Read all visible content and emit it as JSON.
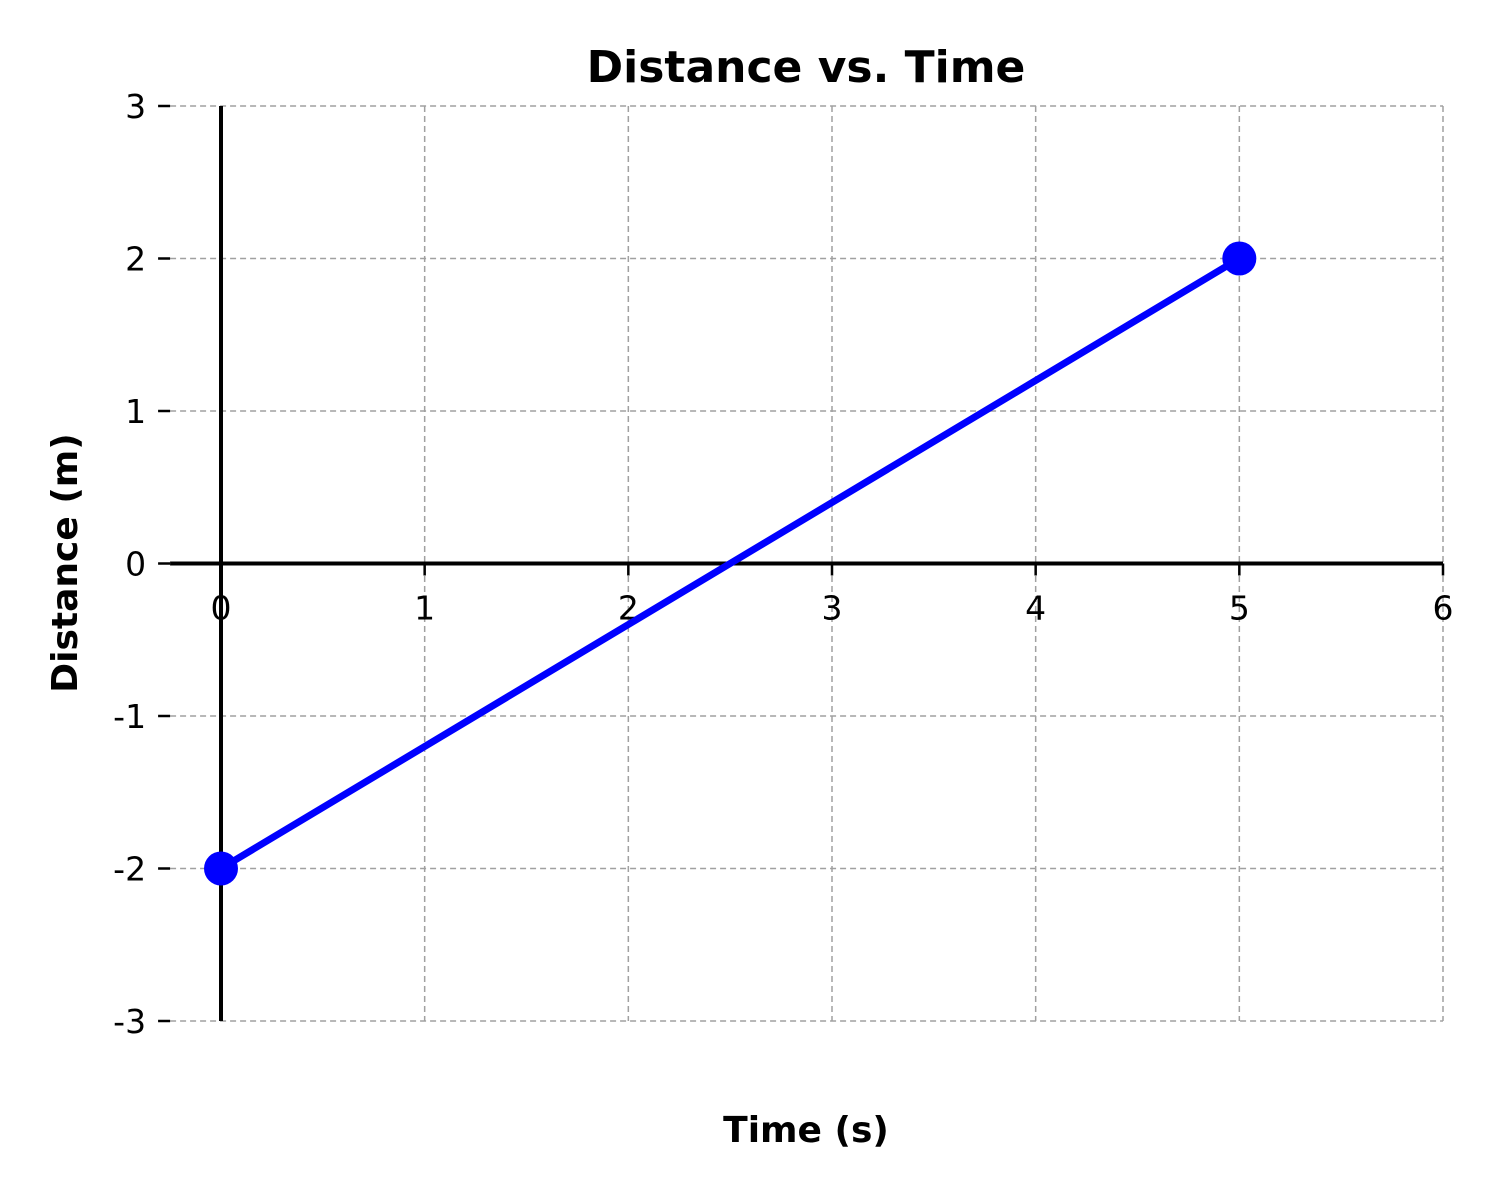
{
  "chart_data": {
    "type": "line",
    "title": "Distance vs. Time",
    "xlabel": "Time (s)",
    "ylabel": "Distance (m)",
    "xlim": [
      -0.25,
      6
    ],
    "ylim": [
      -3,
      3
    ],
    "x_ticks": [
      0,
      1,
      2,
      3,
      4,
      5,
      6
    ],
    "x_tick_labels": [
      "0",
      "1",
      "2",
      "3",
      "4",
      "5",
      "6"
    ],
    "y_ticks": [
      -3,
      -2,
      -1,
      0,
      1,
      2,
      3
    ],
    "y_tick_labels": [
      "-3",
      "-2",
      "-1",
      "0",
      "1",
      "2",
      "3"
    ],
    "grid": true,
    "series": [
      {
        "x": [
          0,
          5
        ],
        "y": [
          -2,
          2
        ],
        "color": "#0000ff",
        "markers": true
      }
    ]
  }
}
